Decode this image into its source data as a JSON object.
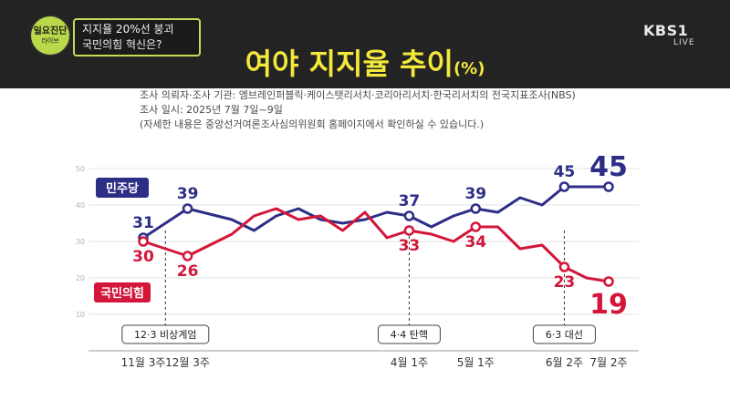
{
  "header": {
    "badge_line1": "일요진단",
    "badge_line2": "라이브",
    "topic_line1": "지지율 20%선 붕괴",
    "topic_line2": "국민의힘 혁신은?",
    "logo": "KBS1",
    "live": "LIVE",
    "title_main": "여야 지지율 추이",
    "title_unit": "(%)"
  },
  "info": {
    "line1": "조사 의뢰자·조사 기관: 엠브레인퍼블릭·케이스탯리서치·코리아리서치·한국리서치의 전국지표조사(NBS)",
    "line2": "조사 일시: 2025년 7월 7일~9일",
    "line3": "(자세한 내용은 중앙선거여론조사심의위원회 홈페이지에서 확인하실 수 있습니다.)"
  },
  "colors": {
    "democratic": "#2d2e86",
    "ppp": "#d3163a",
    "event": "#333333",
    "grid": "#e3e3e3"
  },
  "chart_data": {
    "type": "line",
    "ylim": [
      0,
      50
    ],
    "yticks": [
      10,
      20,
      30,
      40,
      50
    ],
    "x_labels": [
      "11월 3주",
      "12월 3주",
      "4월 1주",
      "5월 1주",
      "6월 2주",
      "7월 2주"
    ],
    "series": [
      {
        "name": "민주당",
        "values": [
          31,
          35,
          39,
          37.5,
          36,
          33,
          37,
          39,
          36,
          35,
          36,
          38,
          37,
          34,
          37,
          39,
          38,
          42,
          40,
          45,
          45,
          45
        ],
        "labels": {
          "0": "31",
          "2": "39",
          "12": "37",
          "15": "39",
          "19": "45",
          "21": "45"
        },
        "marker_idx": [
          0,
          2,
          12,
          15,
          19,
          21
        ]
      },
      {
        "name": "국민의힘",
        "values": [
          30,
          28,
          26,
          29,
          32,
          37,
          39,
          36,
          37,
          33,
          38,
          31,
          33,
          32,
          30,
          34,
          34,
          28,
          29,
          23,
          20,
          19
        ],
        "labels": {
          "0": "30",
          "2": "26",
          "12": "33",
          "15": "34",
          "19": "23",
          "21": "19"
        },
        "marker_idx": [
          0,
          2,
          12,
          15,
          19,
          21
        ]
      }
    ],
    "events": [
      {
        "label": "12·3 비상계엄",
        "at": 1
      },
      {
        "label": "4·4 탄핵",
        "at": 12
      },
      {
        "label": "6·3 대선",
        "at": 19
      }
    ]
  }
}
